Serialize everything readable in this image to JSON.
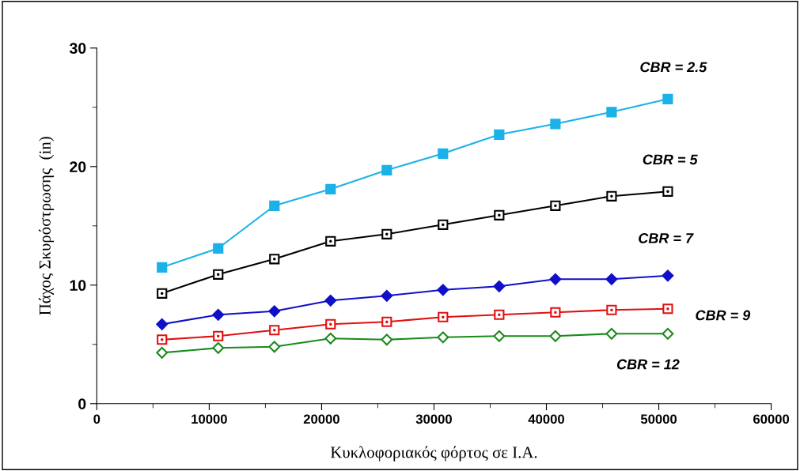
{
  "chart_data": {
    "type": "line",
    "xlabel": "Κυκλοφοριακός φόρτος σε Ι.Α.",
    "ylabel": "Πάχος Σκυρόστρωσης  (in)",
    "x": [
      5800,
      10800,
      15800,
      20800,
      25800,
      30800,
      35800,
      40800,
      45800,
      50800
    ],
    "series": [
      {
        "name": "CBR = 2.5",
        "color": "#1ab2e8",
        "marker": "square",
        "values": [
          11.5,
          13.1,
          16.7,
          18.1,
          19.7,
          21.1,
          22.7,
          23.6,
          24.6,
          25.7
        ]
      },
      {
        "name": "CBR = 5",
        "color": "#000000",
        "marker": "square",
        "values": [
          9.3,
          10.9,
          12.2,
          13.7,
          14.3,
          15.1,
          15.9,
          16.7,
          17.5,
          17.9
        ]
      },
      {
        "name": "CBR = 7",
        "color": "#1010c8",
        "marker": "diamond",
        "values": [
          6.7,
          7.5,
          7.8,
          8.7,
          9.1,
          9.6,
          9.9,
          10.5,
          10.5,
          10.8
        ]
      },
      {
        "name": "CBR = 9",
        "color": "#e01010",
        "marker": "square",
        "values": [
          5.4,
          5.7,
          6.2,
          6.7,
          6.9,
          7.3,
          7.5,
          7.7,
          7.9,
          8.0
        ]
      },
      {
        "name": "CBR = 12",
        "color": "#1a8a1a",
        "marker": "diamond",
        "values": [
          4.3,
          4.7,
          4.8,
          5.5,
          5.4,
          5.6,
          5.7,
          5.7,
          5.9,
          5.9
        ]
      }
    ],
    "xlim": [
      0,
      60000
    ],
    "xticks": [
      0,
      10000,
      20000,
      30000,
      40000,
      50000,
      60000
    ],
    "ylim": [
      0,
      30
    ],
    "yticks": [
      0,
      10,
      20,
      30
    ],
    "grid": false,
    "legend": false,
    "line_style": "solid"
  }
}
